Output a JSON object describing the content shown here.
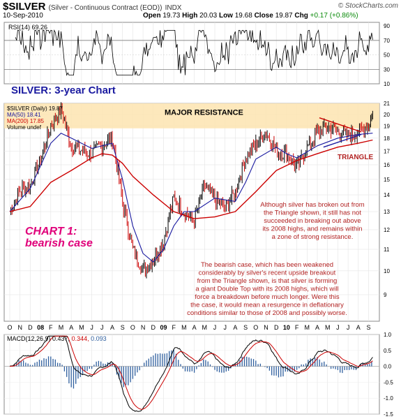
{
  "header": {
    "symbol": "$SILVER",
    "description": "(Silver - Continuous Contract (EOD))",
    "exchange": "INDX",
    "date": "10-Sep-2010",
    "ohlc": "Open 19.73  High 20.03  Low 19.68  Close 19.87  Chg +0.17 (+0.86%)",
    "open_label": "Open",
    "open": "19.73",
    "high_label": "High",
    "high": "20.03",
    "low_label": "Low",
    "low": "19.68",
    "close_label": "Close",
    "close": "19.87",
    "chg_label": "Chg",
    "chg": "+0.17 (+0.86%)",
    "brand": "© StockCharts.com"
  },
  "colors": {
    "price_up": "#000000",
    "price_down": "#cc0000",
    "ma50": "#1a1aa0",
    "ma200": "#cc0000",
    "resistance_band": "#fde4b0",
    "annotation": "#b22222",
    "chart1_label": "#e0007a",
    "subtitle": "#1a1aa0",
    "macd_hist": "#2f5f9e"
  },
  "chart_data": [
    {
      "type": "line",
      "panel": "rsi",
      "label": "RSI(14) 69.26",
      "ylim": [
        10,
        95
      ],
      "ticks": [
        10,
        30,
        50,
        70,
        90
      ],
      "reference_lines": [
        30,
        70
      ],
      "last_value": 69.26
    },
    {
      "type": "line",
      "panel": "price",
      "title": "SILVER: 3-year Chart",
      "scale": "log",
      "ylim": [
        8,
        21
      ],
      "ticks": [
        9,
        10,
        11,
        12,
        13,
        14,
        15,
        16,
        17,
        18,
        19,
        20,
        21
      ],
      "legend": [
        {
          "name": "$SILVER (Daily) 19.87",
          "color": "#000000"
        },
        {
          "name": "MA(50) 18.41",
          "color": "#1a1aa0"
        },
        {
          "name": "MA(200) 17.85",
          "color": "#cc0000"
        },
        {
          "name": "Volume undef",
          "color": "#000000"
        }
      ],
      "x_axis": [
        "O",
        "N",
        "D",
        "08",
        "F",
        "M",
        "A",
        "M",
        "J",
        "J",
        "A",
        "S",
        "O",
        "N",
        "D",
        "09",
        "F",
        "M",
        "A",
        "M",
        "J",
        "J",
        "A",
        "S",
        "O",
        "N",
        "D",
        "10",
        "F",
        "M",
        "A",
        "M",
        "J",
        "J",
        "A",
        "S"
      ],
      "year_labels": [
        "08",
        "09",
        "10"
      ],
      "resistance_band": [
        18.8,
        21
      ],
      "series": [
        {
          "name": "$SILVER",
          "kind": "ohlc",
          "x": [
            0,
            1,
            2,
            3,
            4,
            5,
            6,
            7,
            8,
            9,
            10,
            11,
            12,
            13,
            14,
            15,
            16,
            17,
            18,
            19,
            20,
            21,
            22,
            23,
            24,
            25,
            26,
            27,
            28,
            29,
            30,
            31,
            32,
            33,
            34,
            35,
            35.4
          ],
          "close": [
            13.0,
            14.3,
            14.6,
            16.3,
            19.0,
            20.4,
            17.4,
            17.0,
            16.8,
            17.5,
            18.0,
            13.5,
            11.0,
            10.0,
            10.5,
            11.4,
            13.8,
            13.0,
            12.5,
            14.5,
            13.8,
            13.2,
            14.2,
            16.5,
            17.5,
            18.5,
            17.0,
            16.8,
            15.8,
            17.2,
            18.5,
            18.9,
            18.6,
            18.2,
            18.5,
            19.2,
            19.9
          ]
        },
        {
          "name": "MA(50)",
          "x": [
            0,
            2,
            4,
            5,
            6,
            8,
            10,
            11,
            12,
            13,
            14,
            15,
            16,
            17,
            18,
            20,
            22,
            23,
            24,
            26,
            27,
            28,
            30,
            32,
            34,
            35.4
          ],
          "values": [
            13.0,
            14.4,
            17.6,
            18.4,
            18.0,
            17.2,
            17.6,
            15.0,
            12.2,
            10.8,
            10.4,
            11.0,
            12.2,
            13.0,
            13.0,
            13.8,
            13.6,
            14.8,
            16.4,
            17.3,
            16.8,
            16.5,
            17.4,
            18.0,
            18.3,
            18.4
          ]
        },
        {
          "name": "MA(200)",
          "x": [
            0,
            2,
            4,
            6,
            8,
            9,
            10,
            11,
            12,
            14,
            16,
            18,
            20,
            22,
            24,
            26,
            28,
            30,
            32,
            34,
            35.4
          ],
          "values": [
            13.0,
            13.3,
            14.8,
            15.6,
            16.5,
            16.8,
            16.7,
            16.1,
            15.2,
            14.0,
            13.0,
            12.6,
            12.7,
            13.0,
            14.2,
            15.6,
            16.3,
            16.8,
            17.3,
            17.6,
            17.85
          ]
        }
      ],
      "annotations": [
        {
          "text": "MAJOR RESISTANCE"
        },
        {
          "text": "TRIANGLE"
        },
        {
          "text": "CHART 1:"
        },
        {
          "text": "bearish case"
        },
        {
          "lines": [
            "Although silver has broken out from",
            "the Triangle shown, it still has not",
            "succeeded in breaking out above",
            "its 2008 highs, and remains within",
            "a zone of strong resistance."
          ]
        },
        {
          "lines": [
            "The bearish case, which has been weakened",
            "considerably by silver's recent upside breakout",
            "from the Triangle shown, is that silver is forming",
            "a giant Double Top with its 2008 highs, which will",
            "force a breakdown before much longer. Were this",
            "the case, it would mean a resurgence in deflationary",
            "conditions similar to those of 2008 and possibly worse."
          ]
        }
      ]
    },
    {
      "type": "line",
      "panel": "macd",
      "label": "MACD(12,26,9) 0.437, 0.344, 0.093",
      "label_macd": "0.437",
      "label_signal": "0.344",
      "label_hist": "0.093",
      "ylim": [
        -1.5,
        1.0
      ],
      "ticks": [
        -1.5,
        -1.0,
        -0.5,
        0.0,
        0.5,
        1.0
      ],
      "series": [
        {
          "name": "MACD",
          "color": "#000000"
        },
        {
          "name": "Signal",
          "color": "#cc0000"
        },
        {
          "name": "Histogram",
          "color": "#2f5f9e"
        }
      ]
    }
  ]
}
